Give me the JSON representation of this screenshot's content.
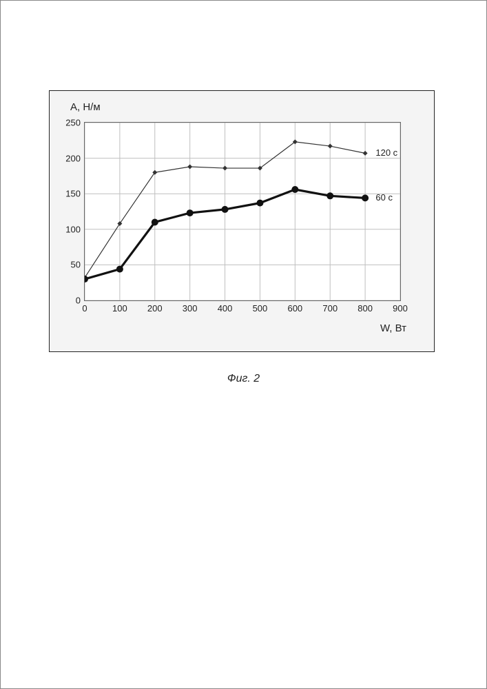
{
  "caption": "Фиг. 2",
  "axes": {
    "ylabel": "A, H/м",
    "xlabel": "W, Вт",
    "xlim": [
      0,
      900
    ],
    "ylim": [
      0,
      250
    ],
    "xticks": [
      0,
      100,
      200,
      300,
      400,
      500,
      600,
      700,
      800,
      900
    ],
    "yticks": [
      0,
      50,
      100,
      150,
      200,
      250
    ],
    "grid_color": "#bfbfbf",
    "border_color": "#666666",
    "background": "#ffffff",
    "tick_fontsize": 13,
    "label_fontsize": 15
  },
  "panel": {
    "background": "#f4f4f4",
    "border_color": "#222222"
  },
  "series": [
    {
      "name": "120 c",
      "label": "120 с",
      "x": [
        0,
        100,
        200,
        300,
        400,
        500,
        600,
        700,
        800
      ],
      "y": [
        32,
        108,
        180,
        188,
        186,
        186,
        223,
        217,
        207
      ],
      "line_color": "#333333",
      "line_width": 1.2,
      "marker": "diamond",
      "marker_size": 7,
      "marker_color": "#333333"
    },
    {
      "name": "60 c",
      "label": "60 с",
      "x": [
        0,
        100,
        200,
        300,
        400,
        500,
        600,
        700,
        800
      ],
      "y": [
        30,
        44,
        110,
        123,
        128,
        137,
        156,
        147,
        144
      ],
      "line_color": "#111111",
      "line_width": 3.2,
      "marker": "circle",
      "marker_size": 10,
      "marker_color": "#111111"
    }
  ],
  "series_label_positions": {
    "120 c": {
      "x": 830,
      "y": 207
    },
    "60 c": {
      "x": 830,
      "y": 144
    }
  }
}
